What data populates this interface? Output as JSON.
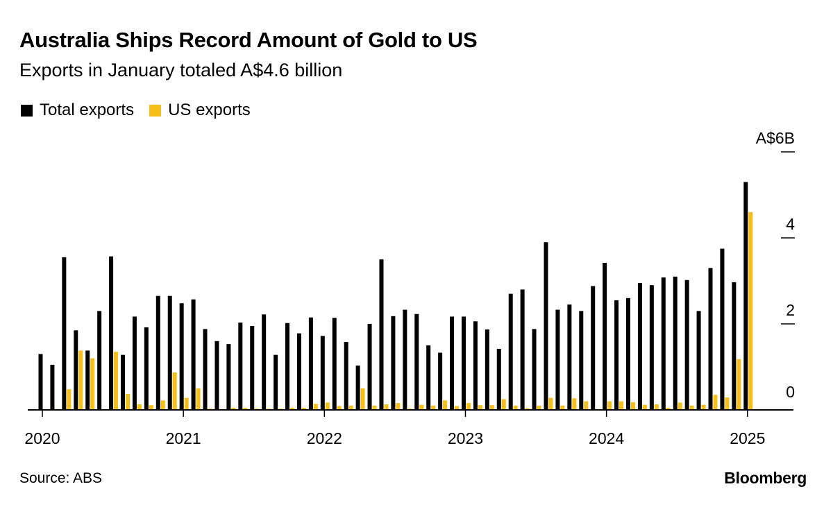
{
  "header": {
    "title": "Australia Ships Record Amount of Gold to US",
    "subtitle": "Exports in January totaled A$4.6 billion"
  },
  "footer": {
    "source": "Source: ABS",
    "brand": "Bloomberg"
  },
  "colors": {
    "total": "#000000",
    "us": "#f5be18",
    "axis": "#000000"
  },
  "chart_data": {
    "type": "bar",
    "title": "Australia Ships Record Amount of Gold to US",
    "subtitle": "Exports in January totaled A$4.6 billion",
    "unit_label": "A$6B",
    "ylim": [
      0,
      6
    ],
    "yticks": [
      {
        "value": 6,
        "label": "A$6B"
      },
      {
        "value": 4,
        "label": "4"
      },
      {
        "value": 2,
        "label": "2"
      },
      {
        "value": 0,
        "label": "0"
      }
    ],
    "xticks": [
      {
        "index": 0,
        "label": "2020"
      },
      {
        "index": 12,
        "label": "2021"
      },
      {
        "index": 24,
        "label": "2022"
      },
      {
        "index": 36,
        "label": "2023"
      },
      {
        "index": 48,
        "label": "2024"
      },
      {
        "index": 60,
        "label": "2025"
      }
    ],
    "legend_position": "top-left",
    "grid": false,
    "categories": [
      "Jan 2020",
      "Feb 2020",
      "Mar 2020",
      "Apr 2020",
      "May 2020",
      "Jun 2020",
      "Jul 2020",
      "Aug 2020",
      "Sep 2020",
      "Oct 2020",
      "Nov 2020",
      "Dec 2020",
      "Jan 2021",
      "Feb 2021",
      "Mar 2021",
      "Apr 2021",
      "May 2021",
      "Jun 2021",
      "Jul 2021",
      "Aug 2021",
      "Sep 2021",
      "Oct 2021",
      "Nov 2021",
      "Dec 2021",
      "Jan 2022",
      "Feb 2022",
      "Mar 2022",
      "Apr 2022",
      "May 2022",
      "Jun 2022",
      "Jul 2022",
      "Aug 2022",
      "Sep 2022",
      "Oct 2022",
      "Nov 2022",
      "Dec 2022",
      "Jan 2023",
      "Feb 2023",
      "Mar 2023",
      "Apr 2023",
      "May 2023",
      "Jun 2023",
      "Jul 2023",
      "Aug 2023",
      "Sep 2023",
      "Oct 2023",
      "Nov 2023",
      "Dec 2023",
      "Jan 2024",
      "Feb 2024",
      "Mar 2024",
      "Apr 2024",
      "May 2024",
      "Jun 2024",
      "Jul 2024",
      "Aug 2024",
      "Sep 2024",
      "Oct 2024",
      "Nov 2024",
      "Dec 2024",
      "Jan 2025"
    ],
    "series": [
      {
        "name": "Total exports",
        "values": [
          1.3,
          1.05,
          3.55,
          1.85,
          1.38,
          2.3,
          3.57,
          1.28,
          2.17,
          1.92,
          2.65,
          2.65,
          2.48,
          2.57,
          1.88,
          1.6,
          1.53,
          2.03,
          1.95,
          2.22,
          1.28,
          2.02,
          1.78,
          2.15,
          1.72,
          2.14,
          1.58,
          1.03,
          2.0,
          3.5,
          2.18,
          2.33,
          2.23,
          1.5,
          1.33,
          2.17,
          2.17,
          2.06,
          1.87,
          1.42,
          2.7,
          2.8,
          1.88,
          3.9,
          2.33,
          2.45,
          2.3,
          2.88,
          3.42,
          2.55,
          2.6,
          2.95,
          2.9,
          3.08,
          3.1,
          3.02,
          2.3,
          3.3,
          3.75,
          2.97,
          5.3
        ]
      },
      {
        "name": "US exports",
        "values": [
          0.0,
          0.02,
          0.48,
          1.38,
          1.2,
          0.02,
          1.35,
          0.37,
          0.13,
          0.11,
          0.22,
          0.87,
          0.28,
          0.5,
          0.03,
          0.02,
          0.05,
          0.05,
          0.03,
          0.03,
          0.03,
          0.05,
          0.05,
          0.14,
          0.17,
          0.09,
          0.1,
          0.5,
          0.1,
          0.13,
          0.16,
          0.03,
          0.12,
          0.1,
          0.22,
          0.09,
          0.16,
          0.11,
          0.11,
          0.25,
          0.1,
          0.04,
          0.1,
          0.28,
          0.1,
          0.27,
          0.2,
          0.02,
          0.2,
          0.2,
          0.18,
          0.12,
          0.13,
          0.05,
          0.17,
          0.1,
          0.12,
          0.35,
          0.29,
          1.18,
          4.6
        ]
      }
    ]
  }
}
